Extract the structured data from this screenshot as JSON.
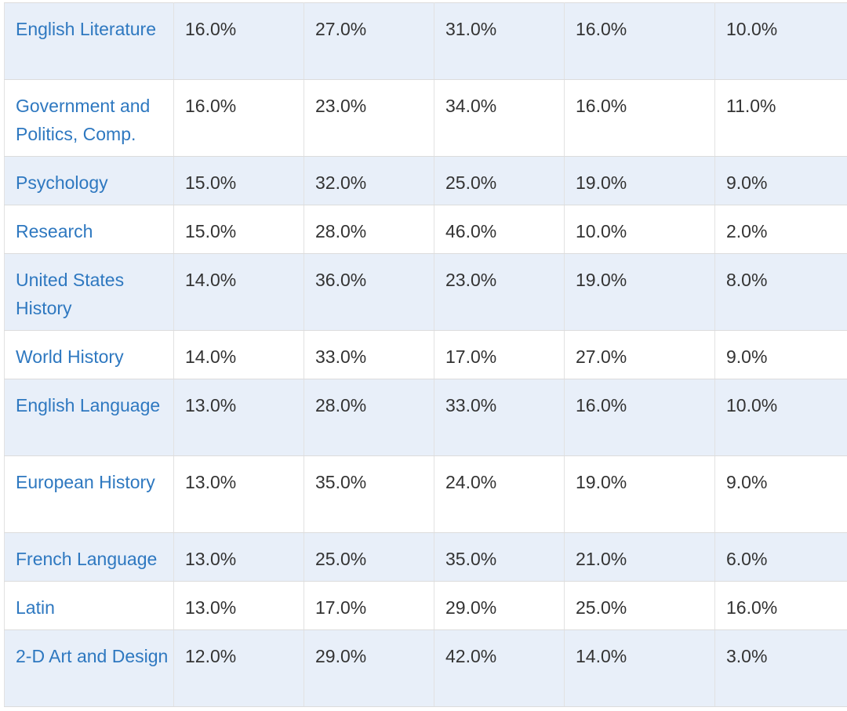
{
  "table": {
    "rows": [
      {
        "subject": "English Literature",
        "values": [
          "16.0%",
          "27.0%",
          "31.0%",
          "16.0%",
          "10.0%"
        ]
      },
      {
        "subject": "Government and Politics, Comp.",
        "values": [
          "16.0%",
          "23.0%",
          "34.0%",
          "16.0%",
          "11.0%"
        ]
      },
      {
        "subject": "Psychology",
        "values": [
          "15.0%",
          "32.0%",
          "25.0%",
          "19.0%",
          "9.0%"
        ]
      },
      {
        "subject": "Research",
        "values": [
          "15.0%",
          "28.0%",
          "46.0%",
          "10.0%",
          "2.0%"
        ]
      },
      {
        "subject": "United States History",
        "values": [
          "14.0%",
          "36.0%",
          "23.0%",
          "19.0%",
          "8.0%"
        ]
      },
      {
        "subject": "World History",
        "values": [
          "14.0%",
          "33.0%",
          "17.0%",
          "27.0%",
          "9.0%"
        ]
      },
      {
        "subject": "English Language",
        "values": [
          "13.0%",
          "28.0%",
          "33.0%",
          "16.0%",
          "10.0%"
        ]
      },
      {
        "subject": "European History",
        "values": [
          "13.0%",
          "35.0%",
          "24.0%",
          "19.0%",
          "9.0%"
        ]
      },
      {
        "subject": "French Language",
        "values": [
          "13.0%",
          "25.0%",
          "35.0%",
          "21.0%",
          "6.0%"
        ]
      },
      {
        "subject": "Latin",
        "values": [
          "13.0%",
          "17.0%",
          "29.0%",
          "25.0%",
          "16.0%"
        ]
      },
      {
        "subject": "2-D Art and Design",
        "values": [
          "12.0%",
          "29.0%",
          "42.0%",
          "14.0%",
          "3.0%"
        ]
      }
    ]
  },
  "colors": {
    "link": "#2e78c0",
    "shaded_row": "#e8eff9",
    "text": "#333333"
  }
}
